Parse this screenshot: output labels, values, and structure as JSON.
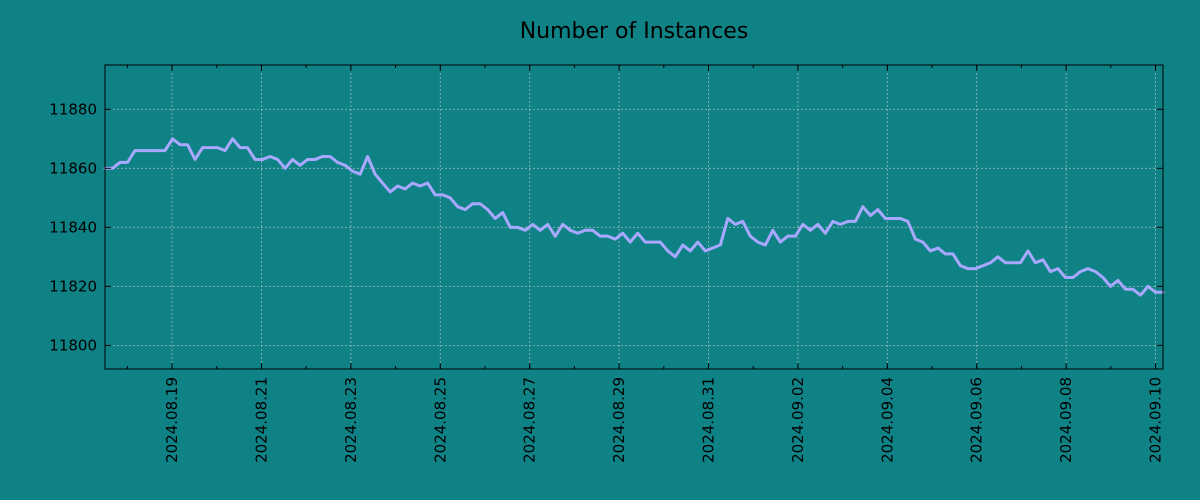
{
  "chart_data": {
    "type": "line",
    "title": "Number of Instances",
    "xlabel": "",
    "ylabel": "",
    "x_start": "2024.08.17 12:00",
    "x_end": "2024.09.10 04:00",
    "xlim": [
      "2024.08.17 12:00",
      "2024.09.10 04:00"
    ],
    "ylim": [
      11792,
      11895
    ],
    "y_ticks": [
      11800,
      11820,
      11840,
      11860,
      11880
    ],
    "x_ticks": [
      "2024.08.19",
      "2024.08.21",
      "2024.08.23",
      "2024.08.25",
      "2024.08.27",
      "2024.08.29",
      "2024.08.31",
      "2024.09.02",
      "2024.09.04",
      "2024.09.06",
      "2024.09.08",
      "2024.09.10"
    ],
    "grid": true,
    "legend": "none",
    "series": [
      {
        "color": "#a9a8ff",
        "values": [
          11860,
          11860,
          11862,
          11862,
          11866,
          11866,
          11866,
          11866,
          11866,
          11870,
          11868,
          11868,
          11863,
          11867,
          11867,
          11867,
          11866,
          11870,
          11867,
          11867,
          11863,
          11863,
          11864,
          11863,
          11860,
          11863,
          11861,
          11863,
          11863,
          11864,
          11864,
          11862,
          11861,
          11859,
          11858,
          11864,
          11858,
          11855,
          11852,
          11854,
          11853,
          11855,
          11854,
          11855,
          11851,
          11851,
          11850,
          11847,
          11846,
          11848,
          11848,
          11846,
          11843,
          11845,
          11840,
          11840,
          11839,
          11841,
          11839,
          11841,
          11837,
          11841,
          11839,
          11838,
          11839,
          11839,
          11837,
          11837,
          11836,
          11838,
          11835,
          11838,
          11835,
          11835,
          11835,
          11832,
          11830,
          11834,
          11832,
          11835,
          11832,
          11833,
          11834,
          11843,
          11841,
          11842,
          11837,
          11835,
          11834,
          11839,
          11835,
          11837,
          11837,
          11841,
          11839,
          11841,
          11838,
          11842,
          11841,
          11842,
          11842,
          11847,
          11844,
          11846,
          11843,
          11843,
          11843,
          11842,
          11836,
          11835,
          11832,
          11833,
          11831,
          11831,
          11827,
          11826,
          11826,
          11827,
          11828,
          11830,
          11828,
          11828,
          11828,
          11832,
          11828,
          11829,
          11825,
          11826,
          11823,
          11823,
          11825,
          11826,
          11825,
          11823,
          11820,
          11822,
          11819,
          11819,
          11817,
          11820,
          11818,
          11818
        ]
      }
    ]
  }
}
